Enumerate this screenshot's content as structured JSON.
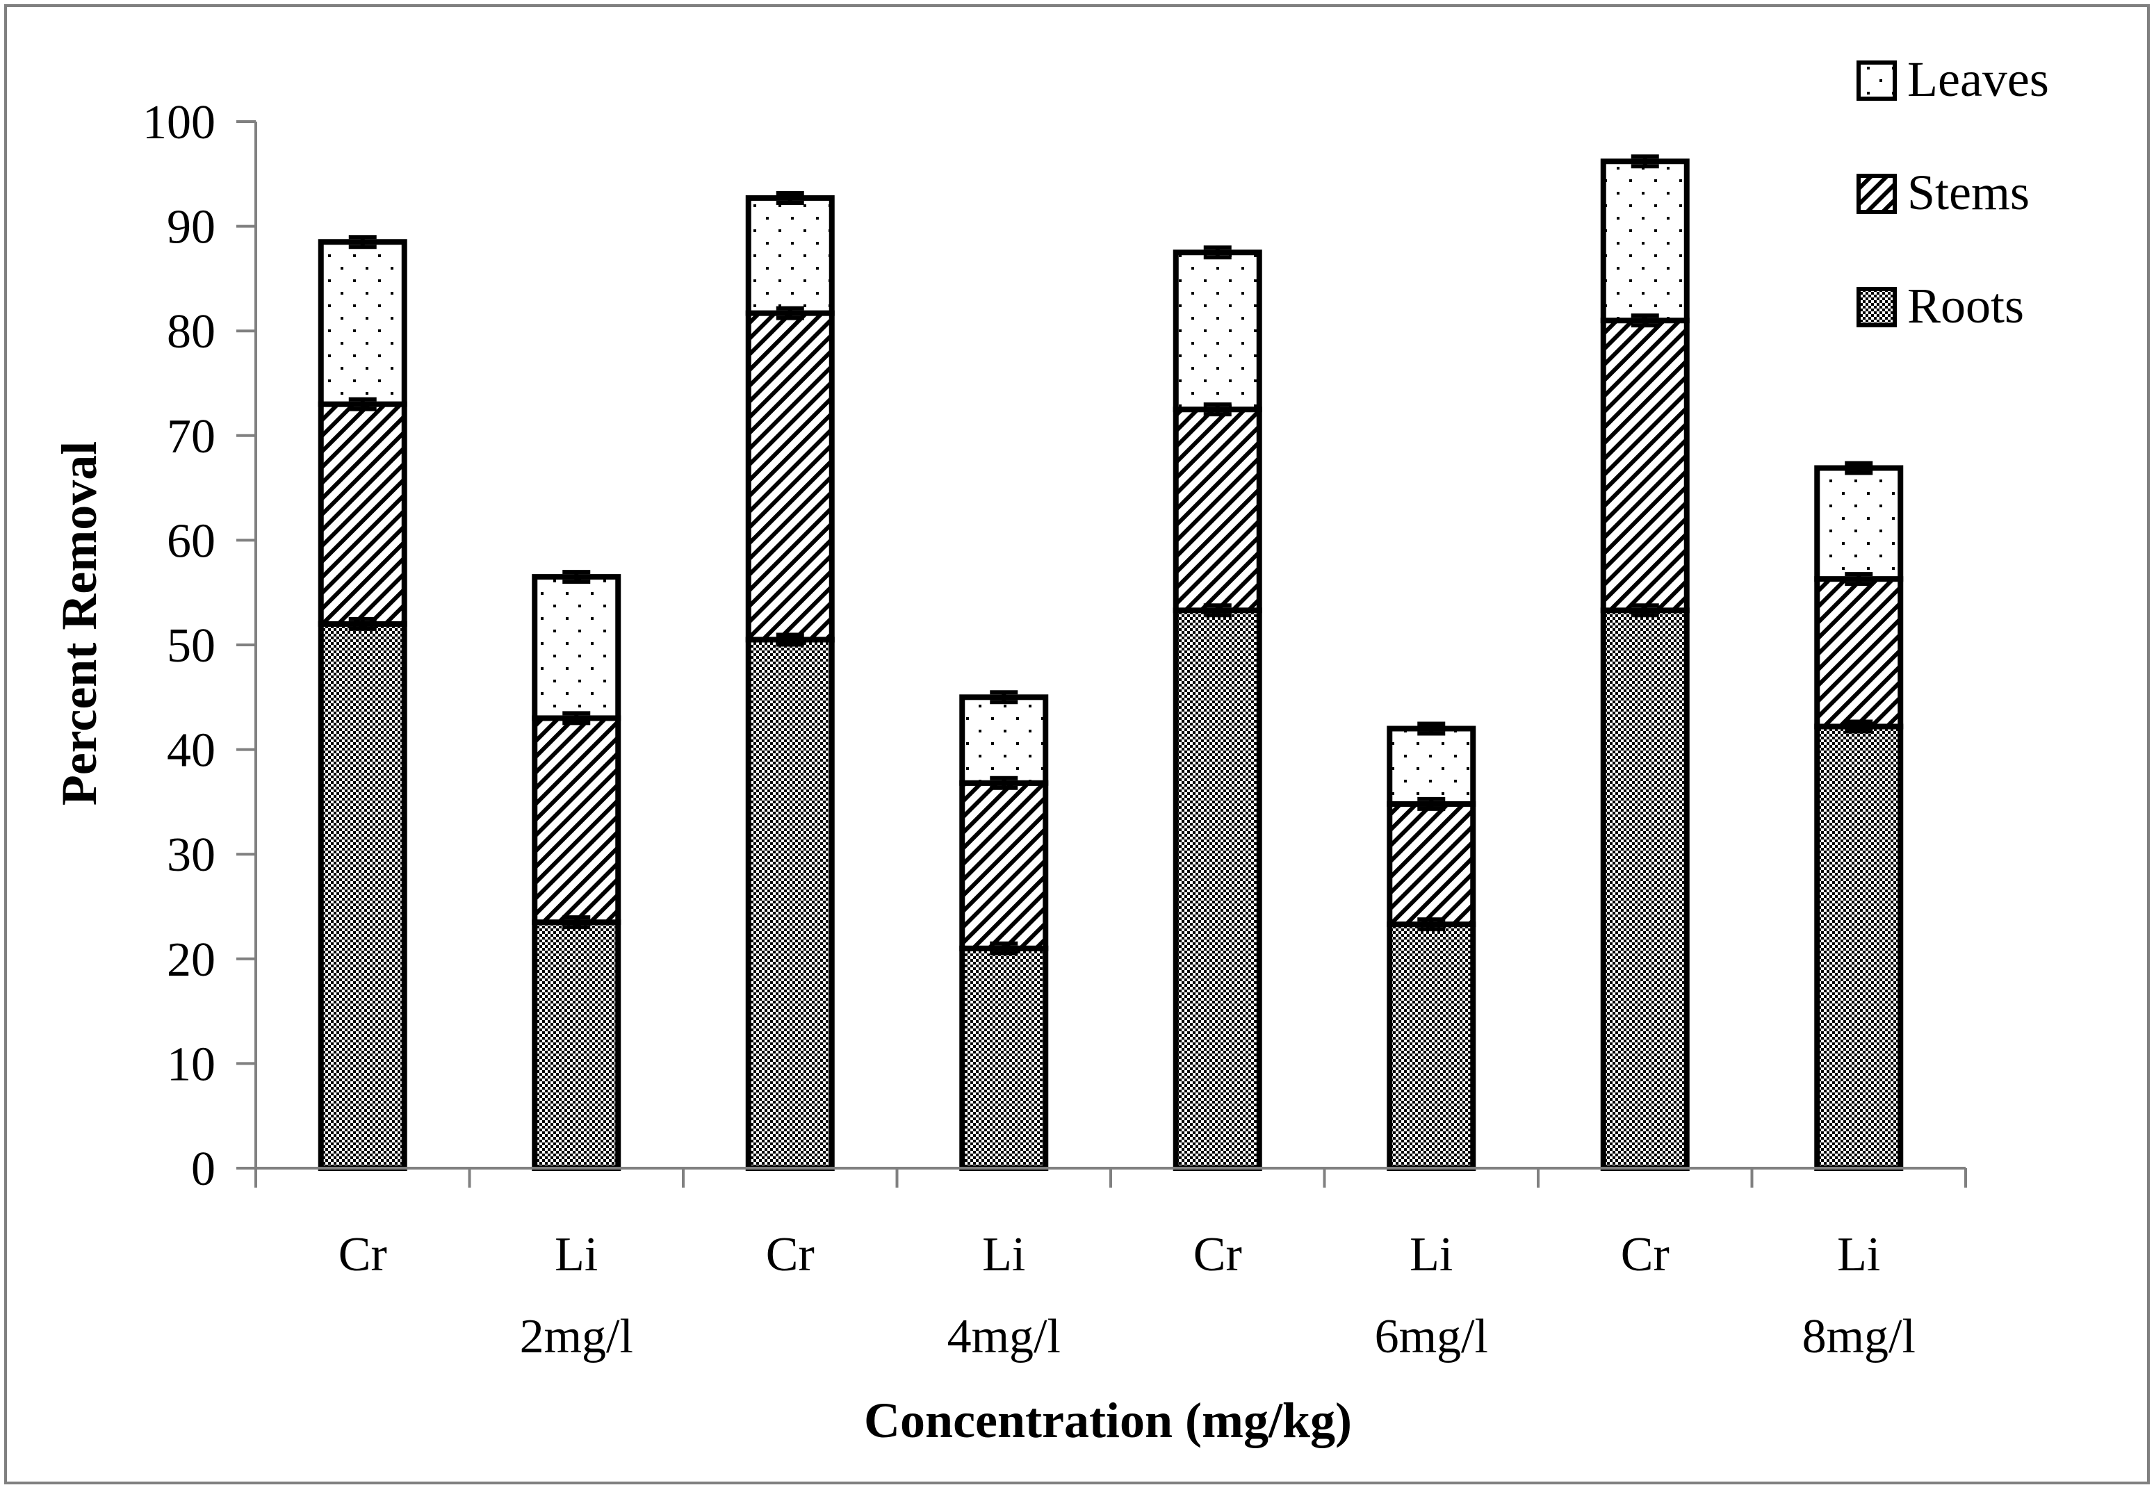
{
  "chart_data": {
    "type": "bar",
    "stacked": true,
    "title": "",
    "xlabel": "Concentration (mg/kg)",
    "ylabel": "Percent Removal",
    "ylim": [
      0,
      100
    ],
    "yticks": [
      "0",
      "10",
      "20",
      "30",
      "40",
      "50",
      "60",
      "70",
      "80",
      "90",
      "100"
    ],
    "categories": [
      "Cr",
      "Li",
      "Cr",
      "Li",
      "Cr",
      "Li",
      "Cr",
      "Li"
    ],
    "groups": [
      "2mg/l",
      "4mg/l",
      "6mg/l",
      "8mg/l"
    ],
    "series": [
      {
        "name": "Roots",
        "pattern": "checker",
        "values": [
          52,
          23.5,
          50.5,
          21,
          53.3,
          23.3,
          53.3,
          42.2
        ]
      },
      {
        "name": "Stems",
        "pattern": "diagonal",
        "values": [
          21,
          19.5,
          31.2,
          15.8,
          19.2,
          11.5,
          27.7,
          14.1
        ]
      },
      {
        "name": "Leaves",
        "pattern": "dots",
        "values": [
          15.5,
          13.5,
          11,
          8.2,
          15,
          7.2,
          15.2,
          10.6
        ]
      }
    ],
    "legend": {
      "position": "top-right",
      "entries": [
        "Leaves",
        "Stems",
        "Roots"
      ]
    },
    "colors": {
      "bar_stroke": "#000000",
      "axis": "#808080",
      "frame": "#808080"
    }
  }
}
